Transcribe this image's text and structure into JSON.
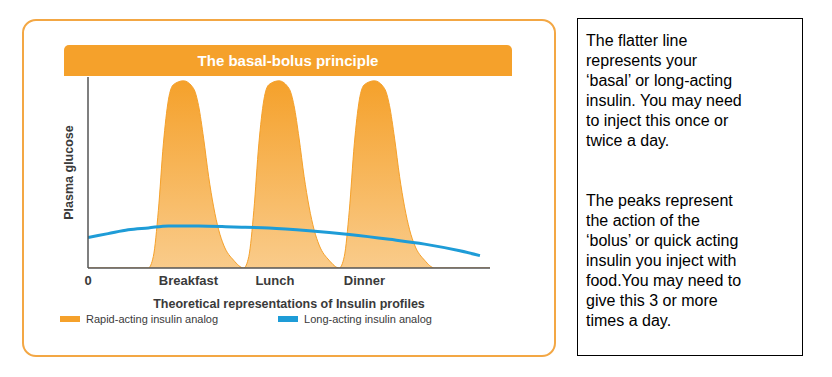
{
  "chart_data": {
    "type": "area",
    "title": "The basal-bolus principle",
    "x_label": "Theoretical representations of Insulin profiles",
    "y_label": "Plasma glucose",
    "xlim": [
      0,
      40
    ],
    "xticks": [
      0,
      {
        "value": 10,
        "label": "Breakfast"
      },
      {
        "value": 18.6,
        "label": "Lunch"
      },
      {
        "value": 27.5,
        "label": "Dinner"
      }
    ],
    "ylim": [
      0,
      100
    ],
    "tick_labels": "x",
    "grid": false,
    "legend": "bottom",
    "series": [
      {
        "name": "Rapid-acting insulin analog",
        "type": "area",
        "color": "#f5a12b",
        "x": [
          0,
          2,
          4,
          6,
          6.5,
          7,
          7.5,
          8,
          8.5,
          9.5,
          10.5,
          11,
          11.5,
          12,
          12.5,
          13,
          13.5,
          14.5,
          15.5,
          16,
          16.5,
          17,
          17.5,
          18,
          19,
          20,
          20.5,
          21,
          21.5,
          22,
          22.5,
          23,
          24,
          25,
          25.5,
          26,
          26.5,
          27,
          27.5,
          28.5,
          29.5,
          30,
          30.5,
          31,
          31.5,
          32,
          32.5,
          33.5,
          34.5,
          37,
          40
        ],
        "values": [
          0,
          0,
          0,
          0,
          6,
          30,
          65,
          88,
          96,
          98,
          94,
          85,
          68,
          48,
          32,
          20,
          12,
          4,
          0,
          6,
          30,
          65,
          88,
          96,
          98,
          94,
          85,
          68,
          48,
          32,
          20,
          12,
          4,
          0,
          6,
          30,
          65,
          88,
          96,
          98,
          94,
          85,
          68,
          48,
          32,
          20,
          12,
          4,
          0,
          0,
          0
        ]
      },
      {
        "name": "Long-acting insulin analog",
        "type": "line",
        "color": "#1e9cd7",
        "x": [
          0,
          2,
          4,
          6,
          8,
          11,
          14.5,
          18,
          22,
          26,
          30,
          33.5,
          37,
          39
        ],
        "values": [
          16,
          18,
          20,
          21,
          22,
          22,
          21.5,
          21,
          19.5,
          17.5,
          15,
          12.5,
          9,
          6.5
        ]
      }
    ]
  },
  "text_box": {
    "paragraphs": [
      [
        "The flatter line",
        "represents your",
        "‘basal’ or long-acting",
        "insulin. You may need",
        "to inject this once or",
        "twice a day."
      ],
      [
        "The peaks represent",
        "the action of the",
        "‘bolus’ or quick acting",
        "insulin you inject with",
        "food.You may need to",
        "give this 3 or more",
        "times a day."
      ]
    ]
  }
}
